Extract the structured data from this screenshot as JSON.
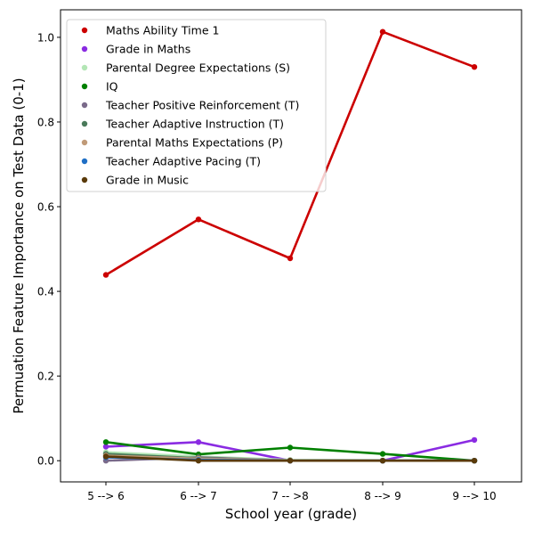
{
  "chart_data": {
    "type": "line",
    "title": "",
    "xlabel": "School year (grade)",
    "ylabel": "Permuation Feature Importance on Test Data (0-1)",
    "categories": [
      "5 --> 6",
      "6 --> 7",
      "7 -- >8",
      "8 --> 9",
      "9 --> 10"
    ],
    "ylim": [
      -0.05,
      1.065
    ],
    "yticks": [
      0.0,
      0.2,
      0.4,
      0.6,
      0.8,
      1.0
    ],
    "ytick_labels": [
      "0.0",
      "0.2",
      "0.4",
      "0.6",
      "0.8",
      "1.0"
    ],
    "grid": false,
    "legend_position": "top-left",
    "series": [
      {
        "name": "Maths Ability Time 1",
        "color": "#cc0000",
        "values": [
          0.439,
          0.57,
          0.478,
          1.013,
          0.93
        ]
      },
      {
        "name": "Grade in Maths",
        "color": "#8a2be2",
        "values": [
          0.033,
          0.044,
          0.0,
          0.0,
          0.049
        ]
      },
      {
        "name": "Parental Degree Expectations (S)",
        "color": "#b3e6b5",
        "values": [
          0.02,
          0.01,
          0.002,
          0.001,
          0.0
        ]
      },
      {
        "name": "IQ",
        "color": "#008000",
        "values": [
          0.044,
          0.015,
          0.031,
          0.016,
          0.0
        ]
      },
      {
        "name": "Teacher Positive Reinforcement (T)",
        "color": "#7a6a8a",
        "values": [
          0.0,
          0.008,
          0.0,
          0.0,
          0.0
        ]
      },
      {
        "name": "Teacher Adaptive Instruction (T)",
        "color": "#4a7a5a",
        "values": [
          0.016,
          0.006,
          0.001,
          0.0,
          0.0
        ]
      },
      {
        "name": "Parental Maths Expectations (P)",
        "color": "#c09a78",
        "values": [
          0.012,
          0.005,
          0.001,
          0.0,
          0.0
        ]
      },
      {
        "name": "Teacher Adaptive Pacing (T)",
        "color": "#1f6fc5",
        "values": [
          0.008,
          0.002,
          0.0,
          0.0,
          0.0
        ]
      },
      {
        "name": "Grade in Music",
        "color": "#5a3a0a",
        "values": [
          0.01,
          0.0,
          0.0,
          0.0,
          0.0
        ]
      }
    ]
  }
}
